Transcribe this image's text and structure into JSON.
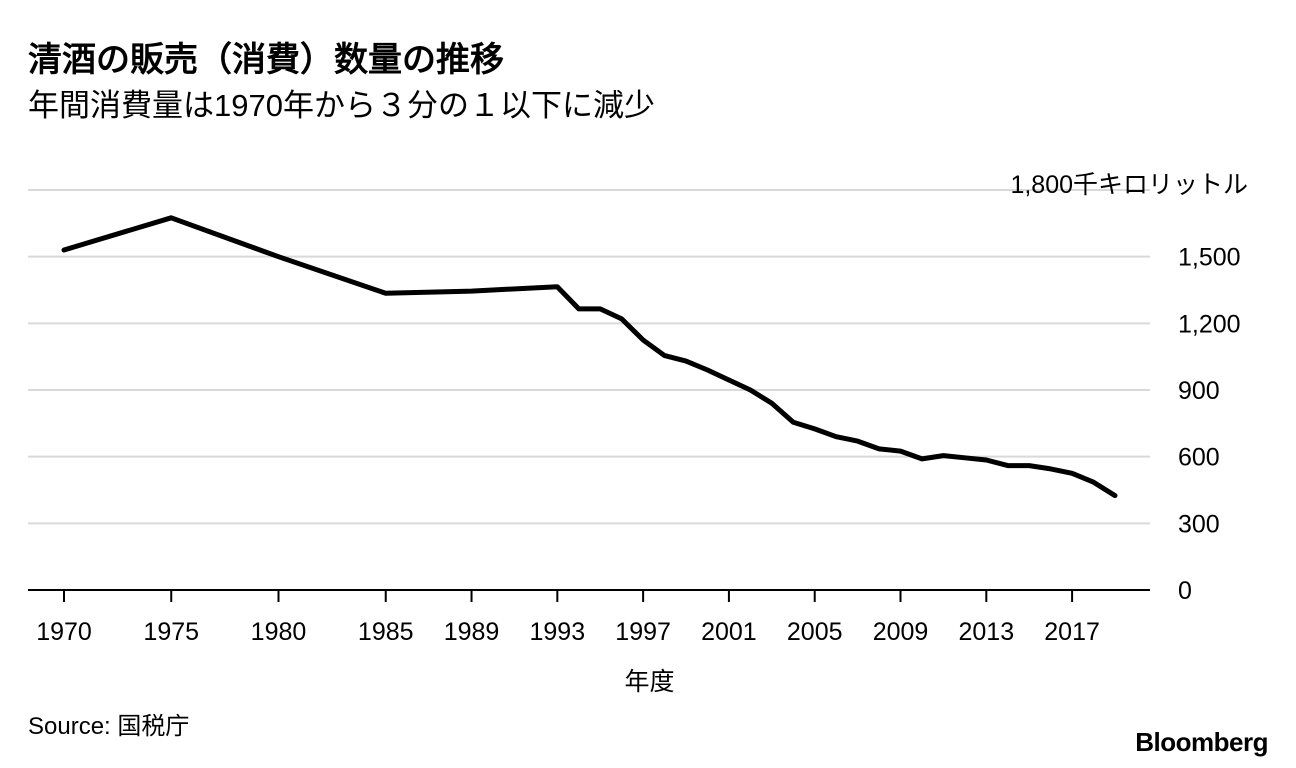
{
  "colors": {
    "line": "#000000",
    "grid": "#d9d9d9",
    "baseline": "#000000",
    "text": "#000000"
  },
  "chart_data": {
    "type": "line",
    "title": "清酒の販売（消費）数量の推移",
    "subtitle": "年間消費量は1970年から３分の１以下に減少",
    "unit_label": "1,800千キロリットル",
    "xlabel": "年度",
    "ylabel": "千キロリットル",
    "ylim": [
      0,
      1800
    ],
    "yticks": [
      "0",
      "300",
      "600",
      "900",
      "1,200",
      "1,500"
    ],
    "ytick_values": [
      0,
      300,
      600,
      900,
      1200,
      1500
    ],
    "xticks": [
      "1970",
      "1975",
      "1980",
      "1985",
      "1989",
      "1993",
      "1997",
      "2001",
      "2005",
      "2009",
      "2013",
      "2017"
    ],
    "xtick_values": [
      1970,
      1975,
      1980,
      1985,
      1989,
      1993,
      1997,
      2001,
      2005,
      2009,
      2013,
      2017
    ],
    "xlim": [
      1970,
      2019
    ],
    "grid": true,
    "series": [
      {
        "name": "清酒の販売（消費）数量",
        "x": [
          1970,
          1975,
          1980,
          1985,
          1989,
          1993,
          1994,
          1995,
          1996,
          1997,
          1998,
          1999,
          2000,
          2001,
          2002,
          2003,
          2004,
          2005,
          2006,
          2007,
          2008,
          2009,
          2010,
          2011,
          2012,
          2013,
          2014,
          2015,
          2016,
          2017,
          2018,
          2019
        ],
        "values": [
          1530,
          1675,
          1500,
          1335,
          1345,
          1365,
          1265,
          1265,
          1220,
          1125,
          1055,
          1030,
          990,
          945,
          900,
          840,
          755,
          725,
          690,
          670,
          635,
          625,
          590,
          605,
          595,
          585,
          560,
          560,
          545,
          525,
          485,
          425
        ]
      }
    ]
  },
  "source": "Source: 国税庁",
  "brand": "Bloomberg"
}
